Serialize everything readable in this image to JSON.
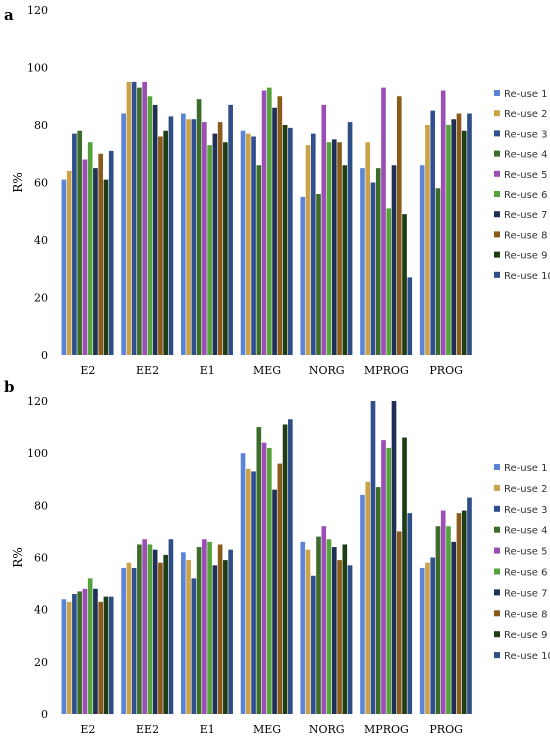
{
  "chart_data": [
    {
      "type": "bar",
      "panel_label": "a",
      "ylabel": "R%",
      "ylim": [
        0,
        120
      ],
      "yticks": [
        0,
        20,
        40,
        60,
        80,
        100,
        120
      ],
      "ytick_labels": [
        "0",
        "20",
        "40",
        "60",
        "80",
        "100",
        "120"
      ],
      "grid": false,
      "legend_position": "right",
      "categories": [
        "E2",
        "EE2",
        "E1",
        "MEG",
        "NORG",
        "MPROG",
        "PROG"
      ],
      "series": [
        {
          "name": "Re-use 1",
          "color": "#5b84d8",
          "values": [
            61,
            84,
            84,
            78,
            55,
            65,
            66
          ]
        },
        {
          "name": "Re-use 2",
          "color": "#c9a24a",
          "values": [
            64,
            95,
            82,
            77,
            73,
            74,
            80
          ]
        },
        {
          "name": "Re-use 3",
          "color": "#2f4f8f",
          "values": [
            77,
            95,
            82,
            76,
            77,
            60,
            85
          ]
        },
        {
          "name": "Re-use 4",
          "color": "#3d6b2a",
          "values": [
            78,
            93,
            89,
            66,
            56,
            65,
            58
          ]
        },
        {
          "name": "Re-use 5",
          "color": "#9b4fb5",
          "values": [
            68,
            95,
            81,
            92,
            87,
            93,
            92
          ]
        },
        {
          "name": "Re-use 6",
          "color": "#55a23a",
          "values": [
            74,
            90,
            73,
            93,
            74,
            51,
            80
          ]
        },
        {
          "name": "Re-use 7",
          "color": "#1f2f55",
          "values": [
            65,
            87,
            77,
            86,
            75,
            66,
            82
          ]
        },
        {
          "name": "Re-use 8",
          "color": "#8a5a1a",
          "values": [
            70,
            76,
            81,
            90,
            74,
            90,
            84
          ]
        },
        {
          "name": "Re-use 9",
          "color": "#1e3d14",
          "values": [
            61,
            78,
            74,
            80,
            66,
            49,
            78
          ]
        },
        {
          "name": "Re-use 10",
          "color": "#2d4e86",
          "values": [
            71,
            83,
            87,
            79,
            81,
            27,
            84
          ]
        }
      ]
    },
    {
      "type": "bar",
      "panel_label": "b",
      "ylabel": "R%",
      "ylim": [
        0,
        120
      ],
      "yticks": [
        0,
        20,
        40,
        60,
        80,
        100,
        120
      ],
      "ytick_labels": [
        "0",
        "20",
        "40",
        "60",
        "80",
        "100",
        "120"
      ],
      "grid": false,
      "legend_position": "right",
      "categories": [
        "E2",
        "EE2",
        "E1",
        "MEG",
        "NORG",
        "MPROG",
        "PROG"
      ],
      "series": [
        {
          "name": "Re-use 1",
          "color": "#5b84d8",
          "values": [
            44,
            56,
            62,
            100,
            66,
            84,
            56
          ]
        },
        {
          "name": "Re-use 2",
          "color": "#c9a24a",
          "values": [
            43,
            58,
            59,
            94,
            63,
            89,
            58
          ]
        },
        {
          "name": "Re-use 3",
          "color": "#2f4f8f",
          "values": [
            46,
            56,
            52,
            93,
            53,
            120,
            60
          ]
        },
        {
          "name": "Re-use 4",
          "color": "#3d6b2a",
          "values": [
            47,
            65,
            64,
            110,
            68,
            87,
            72
          ]
        },
        {
          "name": "Re-use 5",
          "color": "#9b4fb5",
          "values": [
            48,
            67,
            67,
            104,
            72,
            105,
            78
          ]
        },
        {
          "name": "Re-use 6",
          "color": "#55a23a",
          "values": [
            52,
            65,
            66,
            102,
            67,
            102,
            72
          ]
        },
        {
          "name": "Re-use 7",
          "color": "#1f2f55",
          "values": [
            48,
            63,
            57,
            86,
            64,
            120,
            66
          ]
        },
        {
          "name": "Re-use 8",
          "color": "#8a5a1a",
          "values": [
            43,
            58,
            65,
            96,
            59,
            70,
            77
          ]
        },
        {
          "name": "Re-use 9",
          "color": "#1e3d14",
          "values": [
            45,
            61,
            59,
            111,
            65,
            106,
            78
          ]
        },
        {
          "name": "Re-use 10",
          "color": "#2d4e86",
          "values": [
            45,
            67,
            63,
            113,
            57,
            77,
            83
          ]
        }
      ]
    }
  ]
}
